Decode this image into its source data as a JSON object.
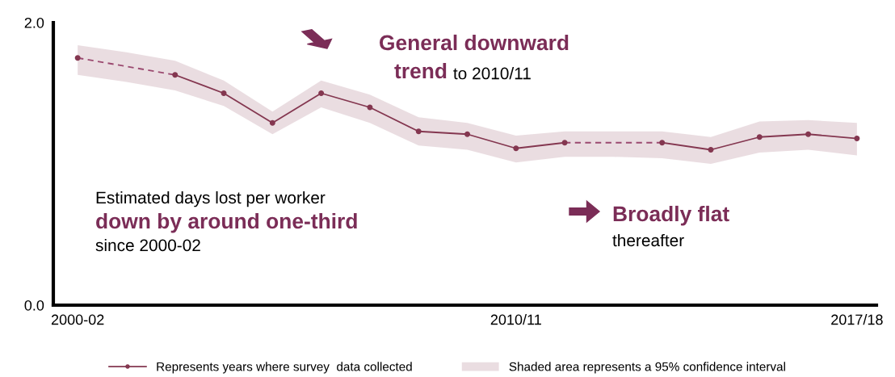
{
  "chart_data": {
    "type": "line",
    "categories": [
      "2000-02",
      null,
      null,
      null,
      null,
      null,
      null,
      null,
      null,
      "2010/11",
      null,
      null,
      null,
      null,
      null,
      null,
      "2017/18"
    ],
    "ylim": [
      0,
      2
    ],
    "yticks": [
      {
        "value": 0,
        "label": "0.0"
      },
      {
        "value": 2,
        "label": "2.0"
      }
    ],
    "grid": false,
    "legend": "bottom",
    "series": [
      {
        "color": "#9b4a70",
        "line_style": "dashed",
        "marker": "none",
        "values": [
          1.75,
          1.69,
          1.63,
          null,
          null,
          null,
          null,
          null,
          null,
          null,
          1.15,
          1.15,
          1.15,
          null,
          null,
          null,
          null
        ]
      },
      {
        "name": "Represents years where survey  data collected",
        "color": "#843750",
        "line_style": "solid",
        "marker": "circle",
        "values": [
          1.75,
          null,
          1.63,
          1.5,
          1.29,
          1.5,
          1.4,
          1.23,
          1.21,
          1.11,
          1.15,
          null,
          1.15,
          1.1,
          1.19,
          1.21,
          1.18
        ],
        "lower": [
          1.63,
          1.58,
          1.52,
          1.41,
          1.21,
          1.4,
          1.29,
          1.13,
          1.1,
          1.01,
          1.05,
          1.05,
          1.04,
          1.0,
          1.08,
          1.1,
          1.06
        ],
        "upper": [
          1.84,
          1.79,
          1.73,
          1.59,
          1.37,
          1.59,
          1.49,
          1.33,
          1.29,
          1.2,
          1.23,
          1.23,
          1.23,
          1.19,
          1.3,
          1.31,
          1.29
        ]
      }
    ],
    "annotations": [
      "General downward",
      "trend",
      "to 2010/11",
      "Estimated days lost per worker",
      "down by around one-third",
      "since 2000-02",
      "Broadly flat",
      "thereafter",
      "Shaded area represents a 95% confidence interval"
    ]
  }
}
